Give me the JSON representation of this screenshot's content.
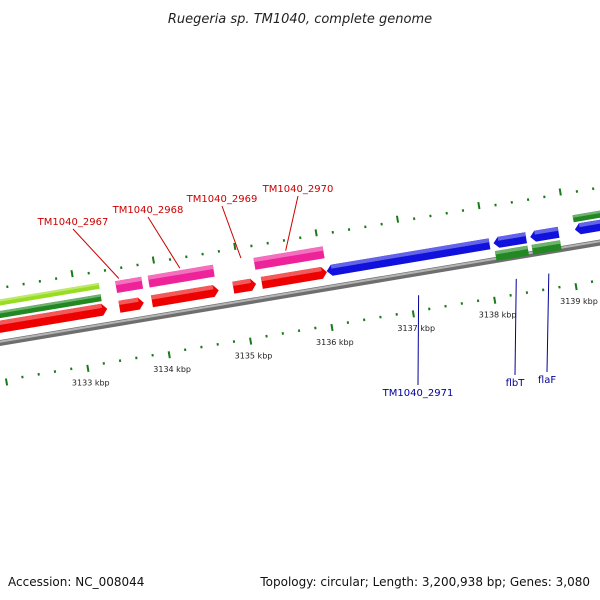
{
  "title": "Ruegeria sp. TM1040, complete genome",
  "footer": {
    "accession": "Accession: NC_008044",
    "summary": "Topology: circular; Length: 3,200,938 bp; Genes: 3,080"
  },
  "colors": {
    "backbone": "#8a8a8a",
    "tick": "#1a7a1a",
    "label_red": "#cc0000",
    "label_blue": "#000099",
    "feature_red": "#ee0000",
    "feature_pink": "#ee2299",
    "feature_blue": "#1111dd",
    "feature_green": "#228822",
    "feature_lime": "#99dd22"
  },
  "axis": {
    "unit": "kbp",
    "start_kbp": 3132.0,
    "end_kbp": 3139.7,
    "labels": [
      {
        "text": "3133 kbp",
        "kbp": 3133
      },
      {
        "text": "3134 kbp",
        "kbp": 3134
      },
      {
        "text": "3135 kbp",
        "kbp": 3135
      },
      {
        "text": "3136 kbp",
        "kbp": 3136
      },
      {
        "text": "3137 kbp",
        "kbp": 3137
      },
      {
        "text": "3138 kbp",
        "kbp": 3138
      },
      {
        "text": "3139 kbp",
        "kbp": 3139
      }
    ]
  },
  "features": [
    {
      "track": "lime",
      "start_kbp": 3131.5,
      "end_kbp": 3133.3,
      "strand": 0
    },
    {
      "track": "green-outer",
      "start_kbp": 3131.5,
      "end_kbp": 3133.3,
      "strand": 0
    },
    {
      "track": "red",
      "start_kbp": 3131.5,
      "end_kbp": 3133.35,
      "strand": 1
    },
    {
      "track": "pink",
      "start_kbp": 3133.5,
      "end_kbp": 3133.82,
      "strand": 0
    },
    {
      "track": "red",
      "start_kbp": 3133.5,
      "end_kbp": 3133.8,
      "strand": 1
    },
    {
      "track": "pink",
      "start_kbp": 3133.9,
      "end_kbp": 3134.7,
      "strand": 0
    },
    {
      "track": "red",
      "start_kbp": 3133.9,
      "end_kbp": 3134.72,
      "strand": 1
    },
    {
      "track": "pink",
      "start_kbp": 3135.2,
      "end_kbp": 3136.05,
      "strand": 0
    },
    {
      "track": "red",
      "start_kbp": 3134.9,
      "end_kbp": 3135.18,
      "strand": 1
    },
    {
      "track": "red",
      "start_kbp": 3135.25,
      "end_kbp": 3136.05,
      "strand": 1
    },
    {
      "track": "blue",
      "start_kbp": 3136.05,
      "end_kbp": 3138.05,
      "strand": -1
    },
    {
      "track": "blue",
      "start_kbp": 3138.1,
      "end_kbp": 3138.5,
      "strand": -1
    },
    {
      "track": "blue",
      "start_kbp": 3138.55,
      "end_kbp": 3138.9,
      "strand": -1
    },
    {
      "track": "blue",
      "start_kbp": 3139.1,
      "end_kbp": 3139.8,
      "strand": -1
    },
    {
      "track": "green-inner",
      "start_kbp": 3138.1,
      "end_kbp": 3138.5,
      "strand": 0
    },
    {
      "track": "green-inner",
      "start_kbp": 3138.55,
      "end_kbp": 3138.9,
      "strand": 0
    },
    {
      "track": "green-outer",
      "start_kbp": 3139.1,
      "end_kbp": 3139.8,
      "strand": 0
    }
  ],
  "gene_labels": [
    {
      "text": "TM1040_2967",
      "gene_kbp": 3133.55,
      "color": "red",
      "side": "above"
    },
    {
      "text": "TM1040_2968",
      "gene_kbp": 3134.3,
      "color": "red",
      "side": "above"
    },
    {
      "text": "TM1040_2969",
      "gene_kbp": 3135.05,
      "color": "red",
      "side": "above"
    },
    {
      "text": "TM1040_2970",
      "gene_kbp": 3135.6,
      "color": "red",
      "side": "above"
    },
    {
      "text": "TM1040_2971",
      "gene_kbp": 3137.1,
      "color": "blue",
      "side": "below"
    },
    {
      "text": "flbT",
      "gene_kbp": 3138.3,
      "color": "blue",
      "side": "below"
    },
    {
      "text": "flaF",
      "gene_kbp": 3138.7,
      "color": "blue",
      "side": "below"
    }
  ]
}
